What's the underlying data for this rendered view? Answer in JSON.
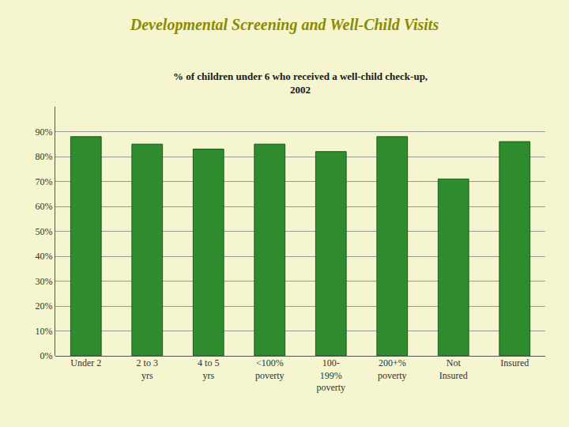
{
  "chart_data": {
    "type": "bar",
    "title": "Developmental Screening and Well-Child Visits",
    "subtitle": "% of children under 6 who received a well-child check-up,\n2002",
    "categories": [
      "Under 2",
      "2 to 3\nyrs",
      "4 to 5\nyrs",
      "<100%\npoverty",
      "100-\n199%\npoverty",
      "200+%\npoverty",
      "Not\nInsured",
      "Insured"
    ],
    "values": [
      88,
      85,
      83,
      85,
      82,
      88,
      71,
      86
    ],
    "color": "#2e8b2e",
    "ylim": [
      0,
      100
    ],
    "yticks": [
      {
        "value": 0,
        "label": "0%"
      },
      {
        "value": 10,
        "label": "10%"
      },
      {
        "value": 20,
        "label": "20%"
      },
      {
        "value": 30,
        "label": "30%"
      },
      {
        "value": 40,
        "label": "40%"
      },
      {
        "value": 50,
        "label": "50%"
      },
      {
        "value": 60,
        "label": "60%"
      },
      {
        "value": 70,
        "label": "70%"
      },
      {
        "value": 80,
        "label": "80%"
      },
      {
        "value": 90,
        "label": "90%"
      }
    ],
    "grid": true
  }
}
